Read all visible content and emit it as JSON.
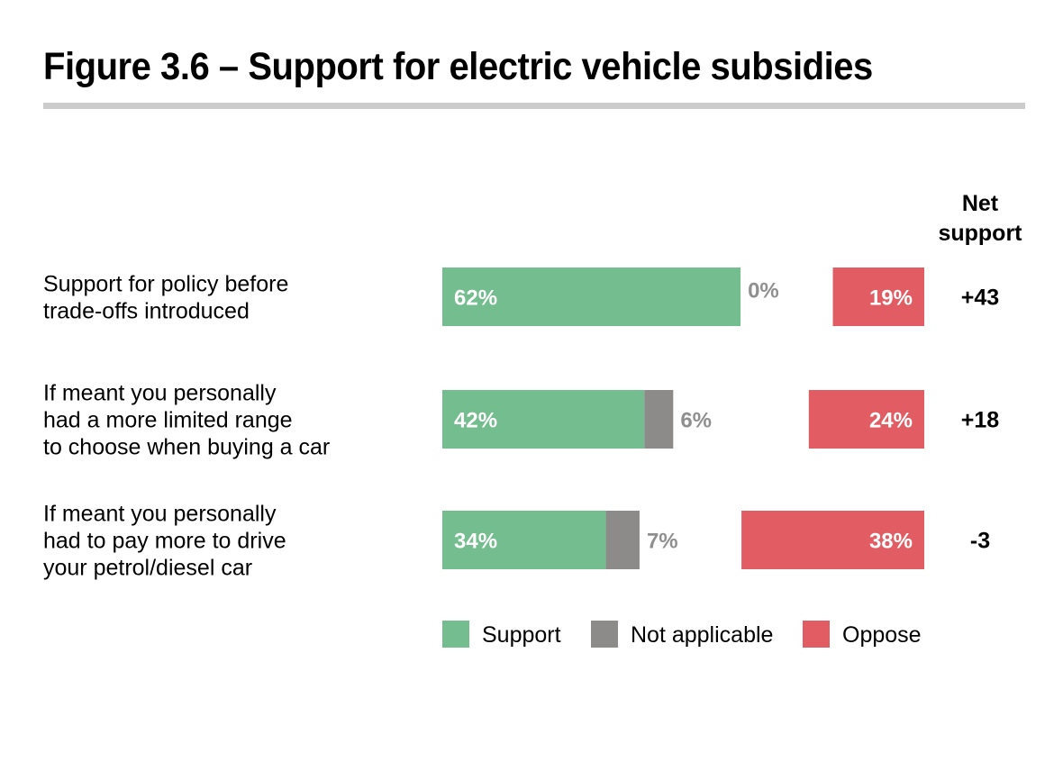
{
  "title": "Figure 3.6 – Support for electric vehicle subsidies",
  "colors": {
    "support": "#74bd8f",
    "not_applicable": "#8d8b89",
    "oppose": "#e15c63",
    "title_rule": "#cccccc"
  },
  "chart_data": {
    "type": "bar",
    "orientation": "horizontal",
    "stacked": false,
    "unit": "%",
    "categories": [
      "Support for policy before trade-offs introduced",
      "If meant you personally had a more limited range to choose when buying a car",
      "If meant you personally had to pay more to drive your petrol/diesel car"
    ],
    "category_lines": [
      [
        "Support for policy before",
        "trade-offs introduced"
      ],
      [
        "If meant you personally",
        "had a more limited range",
        "to choose when buying a car"
      ],
      [
        "If meant you personally",
        "had to pay more to drive",
        "your petrol/diesel car"
      ]
    ],
    "series": [
      {
        "name": "Support",
        "values": [
          62,
          42,
          34
        ],
        "labels": [
          "62%",
          "42%",
          "34%"
        ]
      },
      {
        "name": "Not applicable",
        "values": [
          0,
          6,
          7
        ],
        "labels": [
          "0%",
          "6%",
          "7%"
        ]
      },
      {
        "name": "Oppose",
        "values": [
          19,
          24,
          38
        ],
        "labels": [
          "19%",
          "24%",
          "38%"
        ]
      }
    ],
    "net_support": {
      "header_lines": [
        "Net",
        "support"
      ],
      "values": [
        "+43",
        "+18",
        "-3"
      ]
    },
    "legend": [
      "Support",
      "Not applicable",
      "Oppose"
    ],
    "legend_position": "bottom"
  }
}
